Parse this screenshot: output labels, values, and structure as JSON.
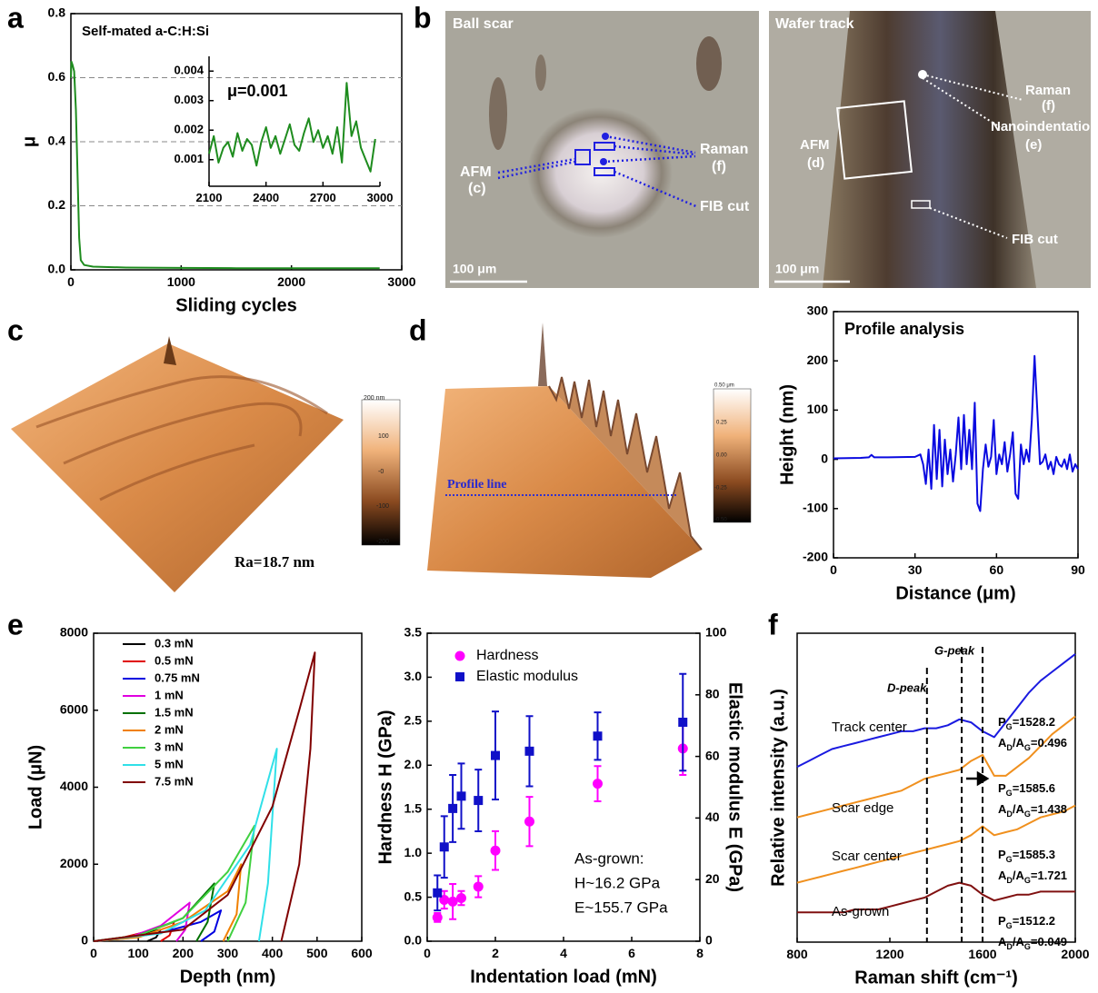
{
  "panel_labels": [
    "a",
    "b",
    "c",
    "d",
    "e",
    "f"
  ],
  "panels": {
    "b": {
      "left": {
        "title": "Ball scar",
        "labels": [
          "Raman",
          "(f)",
          "AFM",
          "(c)",
          "FIB cut"
        ],
        "scale": "100 μm"
      },
      "right": {
        "title": "Wafer track",
        "labels": [
          "Raman",
          "(f)",
          "Nanoindentation",
          "(e)",
          "AFM",
          "(d)",
          "FIB cut"
        ],
        "scale": "100 μm"
      }
    },
    "c": {
      "roughness": "Ra=18.7 nm",
      "colorbar": [
        "200 nm",
        "100",
        "-0",
        "-100",
        "-200"
      ]
    },
    "d": {
      "profile_line": "Profile line",
      "colorbar": [
        "0.50 μm",
        "0.25",
        "0.00",
        "-0.25",
        "-0.50"
      ]
    }
  },
  "chart_data": [
    {
      "type": "line",
      "title": "Self-mated a-C:H:Si",
      "xlabel": "Sliding cycles",
      "ylabel": "μ",
      "x": [
        0,
        5,
        15,
        30,
        45,
        60,
        75,
        90,
        120,
        200,
        500,
        1000,
        1500,
        2000,
        2500,
        2800
      ],
      "values": [
        0.6,
        0.65,
        0.64,
        0.62,
        0.5,
        0.3,
        0.1,
        0.03,
        0.015,
        0.01,
        0.007,
        0.006,
        0.005,
        0.005,
        0.005,
        0.005
      ],
      "color": "#1e8c1e",
      "xlim": [
        0,
        3000
      ],
      "xticks": [
        0,
        1000,
        2000,
        3000
      ],
      "ylim": [
        0,
        0.8
      ],
      "yticks": [
        {
          "value": 0,
          "label": "0.0"
        },
        0.2,
        0.4,
        0.6,
        0.8
      ],
      "grid": true
    },
    {
      "type": "line",
      "annotation": "μ=0.001",
      "x": [
        2100,
        2125,
        2150,
        2175,
        2200,
        2225,
        2250,
        2275,
        2300,
        2325,
        2350,
        2375,
        2400,
        2425,
        2450,
        2475,
        2500,
        2525,
        2550,
        2575,
        2600,
        2625,
        2650,
        2675,
        2700,
        2725,
        2750,
        2775,
        2800,
        2825,
        2850,
        2875,
        2900,
        2925,
        2950,
        2975
      ],
      "values": [
        0.0012,
        0.0018,
        0.0009,
        0.0014,
        0.0016,
        0.0011,
        0.0019,
        0.0013,
        0.0017,
        0.0015,
        0.0008,
        0.0016,
        0.0021,
        0.0014,
        0.0018,
        0.0012,
        0.0017,
        0.0022,
        0.0015,
        0.0013,
        0.0019,
        0.0024,
        0.0016,
        0.002,
        0.0014,
        0.0018,
        0.0012,
        0.0021,
        0.0009,
        0.0036,
        0.0018,
        0.0023,
        0.0014,
        0.001,
        0.0006,
        0.0017
      ],
      "color": "#1e8c1e",
      "xlim": [
        2100,
        3000
      ],
      "xticks": [
        2100,
        2400,
        2700,
        3000
      ],
      "ylim": [
        0.0001,
        0.0045
      ],
      "yticks": [
        0.001,
        0.002,
        0.003,
        0.004
      ]
    },
    {
      "type": "line",
      "title": "Profile analysis",
      "xlabel": "Distance (μm)",
      "ylabel": "Height (nm)",
      "x": [
        0,
        10,
        13,
        14,
        15,
        20,
        30,
        32,
        33,
        34,
        35,
        36,
        37,
        38,
        39,
        40,
        41,
        42,
        43,
        44,
        45,
        46,
        47,
        48,
        49,
        50,
        51,
        52,
        53,
        54,
        55,
        56,
        57,
        58,
        59,
        60,
        61,
        62,
        63,
        64,
        65,
        66,
        67,
        68,
        69,
        70,
        71,
        72,
        73,
        74,
        75,
        76,
        77,
        78,
        79,
        80,
        81,
        82,
        83,
        84,
        85,
        86,
        87,
        88,
        89,
        90
      ],
      "values": [
        2,
        3,
        4,
        9,
        4,
        4,
        5,
        10,
        -10,
        -50,
        20,
        -60,
        70,
        -40,
        60,
        -55,
        40,
        -30,
        20,
        -45,
        10,
        85,
        -20,
        90,
        -10,
        60,
        -20,
        115,
        -90,
        -105,
        -20,
        30,
        -15,
        5,
        80,
        -30,
        10,
        -10,
        35,
        -25,
        10,
        55,
        -70,
        -80,
        30,
        -10,
        20,
        -5,
        80,
        210,
        100,
        -10,
        -5,
        10,
        -20,
        -5,
        -30,
        5,
        -10,
        -15,
        0,
        -20,
        10,
        -25,
        -10,
        -20
      ],
      "color": "#0a0ae0",
      "xlim": [
        0,
        90
      ],
      "xticks": [
        0,
        30,
        60,
        90
      ],
      "ylim": [
        -200,
        300
      ],
      "yticks": [
        -200,
        -100,
        0,
        100,
        200,
        300
      ]
    },
    {
      "type": "line",
      "xlabel": "Depth (nm)",
      "ylabel": "Load (μN)",
      "legend": "upper left",
      "xlim": [
        0,
        600
      ],
      "xticks": [
        0,
        100,
        200,
        300,
        400,
        500,
        600
      ],
      "ylim": [
        0,
        8000
      ],
      "yticks": [
        0,
        2000,
        4000,
        6000,
        8000
      ],
      "series": [
        {
          "name": "0.3 mN",
          "color": "#000000",
          "x": [
            0,
            50,
            100,
            150,
            140,
            120
          ],
          "values": [
            0,
            60,
            170,
            300,
            100,
            0
          ]
        },
        {
          "name": "0.5 mN",
          "color": "#e00000",
          "x": [
            0,
            60,
            120,
            180,
            170,
            150
          ],
          "values": [
            0,
            80,
            250,
            500,
            150,
            0
          ]
        },
        {
          "name": "0.75 mN",
          "color": "#0000e0",
          "x": [
            0,
            80,
            160,
            240,
            285,
            270,
            240
          ],
          "values": [
            0,
            80,
            250,
            500,
            800,
            250,
            0
          ]
        },
        {
          "name": "1 mN",
          "color": "#e000e0",
          "x": [
            0,
            80,
            150,
            215,
            205,
            185
          ],
          "values": [
            0,
            100,
            400,
            1000,
            300,
            0
          ]
        },
        {
          "name": "1.5 mN",
          "color": "#007000",
          "x": [
            0,
            100,
            200,
            270,
            255,
            230
          ],
          "values": [
            0,
            150,
            600,
            1500,
            500,
            0
          ]
        },
        {
          "name": "2 mN",
          "color": "#f08000",
          "x": [
            0,
            100,
            200,
            300,
            330,
            320,
            290
          ],
          "values": [
            0,
            100,
            500,
            1300,
            2000,
            700,
            0
          ]
        },
        {
          "name": "3 mN",
          "color": "#40d040",
          "x": [
            0,
            100,
            200,
            300,
            360,
            340,
            300
          ],
          "values": [
            0,
            150,
            600,
            1800,
            3000,
            1000,
            0
          ]
        },
        {
          "name": "5 mN",
          "color": "#30e0e8",
          "x": [
            0,
            150,
            250,
            350,
            410,
            390,
            370
          ],
          "values": [
            0,
            200,
            800,
            2500,
            5000,
            1500,
            0
          ]
        },
        {
          "name": "7.5 mN",
          "color": "#800000",
          "x": [
            0,
            200,
            300,
            400,
            460,
            495,
            485,
            460,
            420
          ],
          "values": [
            0,
            300,
            1200,
            3500,
            6000,
            7500,
            5000,
            2000,
            0
          ]
        }
      ]
    },
    {
      "type": "scatter",
      "xlabel": "Indentation load (mN)",
      "ylabel": "Hardness H (GPa)",
      "y2label": "Elastic modulus E (GPa)",
      "legend": "upper left",
      "x": [
        0.3,
        0.5,
        0.75,
        1,
        1.5,
        2,
        3,
        5,
        7.5
      ],
      "xlim": [
        0,
        8
      ],
      "xticks": [
        0,
        2,
        4,
        6,
        8
      ],
      "ylim": [
        0,
        3.5
      ],
      "yticks": [
        {
          "value": 0,
          "label": "0.0"
        },
        0.5,
        {
          "value": 1,
          "label": "1.0"
        },
        1.5,
        {
          "value": 2,
          "label": "2.0"
        },
        2.5,
        {
          "value": 3,
          "label": "3.0"
        },
        3.5
      ],
      "y2lim": [
        0,
        100
      ],
      "y2ticks": [
        0,
        20,
        40,
        60,
        80,
        100
      ],
      "series": [
        {
          "name": "Hardness",
          "color": "#ff00ff",
          "marker": "circle",
          "values": [
            0.27,
            0.47,
            0.45,
            0.49,
            0.62,
            1.03,
            1.36,
            1.79,
            2.19
          ],
          "errors": [
            0.05,
            0.1,
            0.2,
            0.08,
            0.12,
            0.22,
            0.28,
            0.2,
            0.3
          ]
        },
        {
          "name": "Elastic modulus",
          "color": "#1010c8",
          "marker": "square",
          "axis": "y2",
          "values": [
            15.7,
            30.6,
            43.1,
            47.1,
            45.7,
            60.3,
            61.7,
            66.6,
            71.1
          ],
          "errors": [
            5.7,
            10,
            10.9,
            10.6,
            10,
            14.3,
            11.4,
            7.7,
            15.7
          ]
        }
      ],
      "annotations": [
        "As-grown:",
        "H~16.2 GPa",
        "E~155.7 GPa"
      ]
    },
    {
      "type": "line",
      "xlabel": "Raman shift (cm⁻¹)",
      "ylabel": "Relative intensity (a.u.)",
      "xlim": [
        800,
        2000
      ],
      "xticks": [
        800,
        1200,
        1600,
        2000
      ],
      "ylim": [
        0,
        10.4
      ],
      "x": [
        800,
        850,
        900,
        950,
        1000,
        1050,
        1100,
        1150,
        1200,
        1250,
        1300,
        1350,
        1400,
        1450,
        1500,
        1550,
        1600,
        1650,
        1700,
        1750,
        1800,
        1850,
        1900,
        1950,
        2000
      ],
      "series": [
        {
          "name": "Track center",
          "color": "#1a1ae0",
          "values": [
            5.9,
            6.1,
            6.3,
            6.5,
            6.6,
            6.7,
            6.8,
            6.9,
            7.0,
            7.1,
            7.1,
            7.2,
            7.2,
            7.3,
            7.5,
            7.4,
            7.1,
            6.9,
            7.4,
            7.9,
            8.4,
            8.8,
            9.1,
            9.4,
            9.7
          ]
        },
        {
          "name": "Scar edge",
          "color": "#f0901e",
          "values": [
            4.2,
            4.3,
            4.4,
            4.5,
            4.6,
            4.7,
            4.8,
            4.9,
            5.0,
            5.1,
            5.3,
            5.5,
            5.6,
            5.7,
            5.8,
            6.1,
            6.3,
            5.6,
            5.6,
            5.9,
            6.2,
            6.6,
            7.0,
            7.3,
            7.6
          ]
        },
        {
          "name": "Scar center",
          "color": "#f0901e",
          "values": [
            2.0,
            2.1,
            2.2,
            2.3,
            2.4,
            2.5,
            2.6,
            2.7,
            2.8,
            2.9,
            3.0,
            3.1,
            3.2,
            3.3,
            3.4,
            3.6,
            3.9,
            3.6,
            3.7,
            3.8,
            4.0,
            4.2,
            4.3,
            4.4,
            4.6
          ]
        },
        {
          "name": "As-grown",
          "color": "#801010",
          "values": [
            1.0,
            1.0,
            1.0,
            1.0,
            1.0,
            1.1,
            1.1,
            1.1,
            1.2,
            1.3,
            1.4,
            1.5,
            1.7,
            1.9,
            2.0,
            1.9,
            1.6,
            1.4,
            1.5,
            1.6,
            1.6,
            1.7,
            1.7,
            1.7,
            1.7
          ]
        }
      ],
      "vlines": [
        1360,
        1510,
        1600
      ],
      "peak_labels": [
        "D-peak",
        "G-peak"
      ],
      "annotations": [
        [
          "P",
          "G",
          "=1528.2"
        ],
        [
          "A",
          "D",
          "/A",
          "G",
          "=0.496"
        ],
        [
          "P",
          "G",
          "=1585.6"
        ],
        [
          "A",
          "D",
          "/A",
          "G",
          "=1.438"
        ],
        [
          "P",
          "G",
          "=1585.3"
        ],
        [
          "A",
          "D",
          "/A",
          "G",
          "=1.721"
        ],
        [
          "P",
          "G",
          "=1512.2"
        ],
        [
          "A",
          "D",
          "/A",
          "G",
          "=0.049"
        ]
      ]
    }
  ]
}
